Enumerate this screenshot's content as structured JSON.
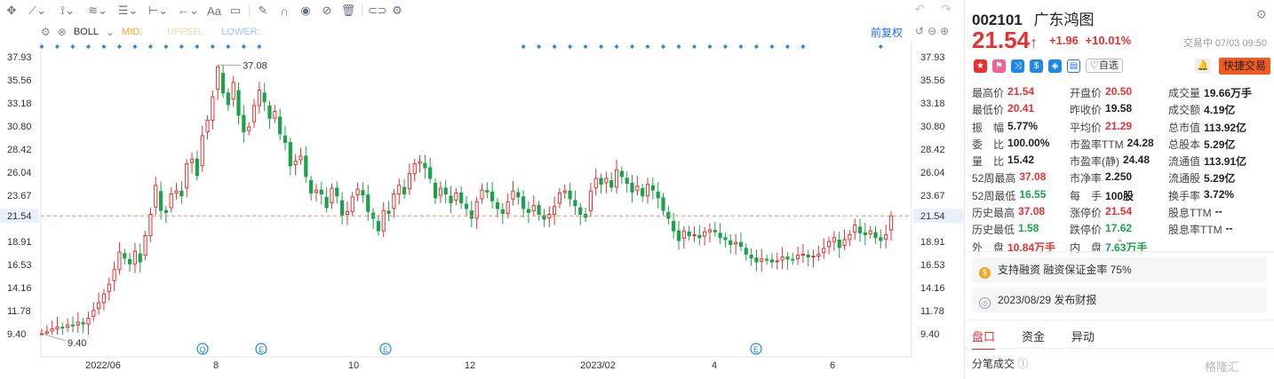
{
  "toolbar": {
    "icons": [
      "crosshair-icon",
      "line-tool-icon",
      "channel-tool-icon",
      "pattern-tool-icon",
      "fib-tool-icon",
      "measure-tool-icon",
      "arrow-tool-icon",
      "text-tool-icon",
      "comment-icon",
      "pencil-icon",
      "magnet-icon",
      "hide-drawings-icon",
      "remove-drawings-icon",
      "trash-icon",
      "link-icon",
      "settings-icon"
    ],
    "text_tool": "Aa"
  },
  "indicator": {
    "name": "BOLL",
    "mid": "MID:",
    "upper": "UPPER:",
    "lower": "LOWER:"
  },
  "adjust_label": "前复权",
  "chart_data": {
    "type": "candlestick",
    "y_ticks": [
      "37.93",
      "35.56",
      "33.18",
      "30.80",
      "28.42",
      "26.04",
      "23.67",
      "21.54",
      "18.91",
      "16.53",
      "14.16",
      "11.78",
      "9.40"
    ],
    "right_y_ticks": [
      "37.93",
      "35.56",
      "33.18",
      "30.80",
      "28.42",
      "26.04",
      "23.67",
      "21.54",
      "18.91",
      "16.53",
      "14.16",
      "11.78",
      "9.40"
    ],
    "x_ticks": [
      "2022/06",
      "8",
      "10",
      "12",
      "2023/02",
      "4",
      "6"
    ],
    "ylim": [
      9.4,
      37.93
    ],
    "high_label": "37.08",
    "low_label": "9.40",
    "current_price": 21.54,
    "event_markers": [
      "Q",
      "E",
      "E",
      "E"
    ],
    "closes": [
      9.4,
      9.6,
      9.9,
      10.1,
      10.0,
      10.3,
      10.2,
      10.6,
      10.4,
      11.0,
      11.8,
      12.6,
      13.5,
      14.5,
      16.0,
      17.8,
      17.2,
      16.6,
      17.9,
      16.8,
      19.5,
      21.7,
      24.7,
      22.1,
      21.9,
      23.8,
      24.1,
      23.6,
      26.9,
      27.4,
      25.7,
      29.8,
      31.4,
      33.8,
      36.9,
      34.2,
      33.0,
      35.3,
      31.9,
      30.2,
      30.7,
      32.9,
      34.5,
      33.3,
      31.6,
      32.3,
      30.0,
      29.1,
      26.7,
      27.2,
      27.7,
      25.6,
      23.9,
      24.2,
      23.8,
      22.4,
      24.4,
      23.6,
      21.6,
      22.0,
      23.5,
      24.3,
      23.7,
      22.0,
      21.3,
      20.0,
      22.1,
      21.8,
      23.8,
      24.7,
      23.8,
      25.9,
      26.9,
      27.1,
      26.5,
      25.4,
      23.4,
      24.4,
      23.8,
      22.9,
      23.9,
      22.9,
      22.3,
      21.3,
      23.0,
      24.2,
      24.0,
      23.1,
      22.3,
      21.8,
      23.0,
      24.1,
      23.5,
      22.3,
      21.9,
      22.6,
      21.7,
      21.2,
      21.7,
      22.5,
      23.9,
      24.1,
      23.3,
      22.6,
      21.7,
      21.4,
      24.1,
      25.4,
      24.8,
      25.4,
      24.5,
      26.3,
      25.6,
      24.9,
      24.0,
      24.6,
      23.6,
      24.8,
      24.2,
      23.4,
      22.1,
      21.3,
      20.0,
      19.0,
      20.0,
      19.5,
      19.6,
      19.3,
      19.9,
      20.1,
      19.9,
      19.3,
      19.1,
      18.6,
      18.8,
      18.4,
      17.6,
      17.2,
      16.8,
      17.1,
      17.0,
      16.8,
      16.9,
      17.3,
      17.1,
      17.0,
      17.5,
      17.6,
      17.3,
      17.4,
      17.6,
      18.2,
      18.9,
      19.3,
      18.3,
      19.1,
      19.6,
      20.6,
      19.8,
      19.6,
      20.0,
      19.3,
      19.0,
      19.6,
      21.54
    ]
  },
  "stock": {
    "code": "002101",
    "name": "广东鸿图",
    "price": "21.54",
    "arrow": "↑",
    "change": "+1.96",
    "change_pct": "+10.01%",
    "status": "交易中 07/03 09:50",
    "watch_label": "自选",
    "quick_trade_label": "快捷交易"
  },
  "stats": [
    [
      {
        "l": "最高价",
        "v": "21.54",
        "c": "red"
      },
      {
        "l": "开盘价",
        "v": "20.50",
        "c": "red"
      },
      {
        "l": "成交量",
        "v": "19.66万手",
        "c": ""
      }
    ],
    [
      {
        "l": "最低价",
        "v": "20.41",
        "c": "red"
      },
      {
        "l": "昨收价",
        "v": "19.58",
        "c": ""
      },
      {
        "l": "成交额",
        "v": "4.19亿",
        "c": ""
      }
    ],
    [
      {
        "l": "振　幅",
        "v": "5.77%",
        "c": ""
      },
      {
        "l": "平均价",
        "v": "21.29",
        "c": "red"
      },
      {
        "l": "总市值",
        "v": "113.92亿",
        "c": ""
      }
    ],
    [
      {
        "l": "委　比",
        "v": "100.00%",
        "c": ""
      },
      {
        "l": "市盈率TTM",
        "v": "24.28",
        "c": ""
      },
      {
        "l": "总股本",
        "v": "5.29亿",
        "c": ""
      }
    ],
    [
      {
        "l": "量　比",
        "v": "15.42",
        "c": ""
      },
      {
        "l": "市盈率(静)",
        "v": "24.48",
        "c": ""
      },
      {
        "l": "流通值",
        "v": "113.91亿",
        "c": ""
      }
    ],
    [
      {
        "l": "52周最高",
        "v": "37.08",
        "c": "red"
      },
      {
        "l": "市净率",
        "v": "2.250",
        "c": ""
      },
      {
        "l": "流通股",
        "v": "5.29亿",
        "c": ""
      }
    ],
    [
      {
        "l": "52周最低",
        "v": "16.55",
        "c": "green"
      },
      {
        "l": "每　手",
        "v": "100股",
        "c": ""
      },
      {
        "l": "换手率",
        "v": "3.72%",
        "c": ""
      }
    ],
    [
      {
        "l": "历史最高",
        "v": "37.08",
        "c": "red"
      },
      {
        "l": "涨停价",
        "v": "21.54",
        "c": "red"
      },
      {
        "l": "股息TTM",
        "v": "--",
        "c": ""
      }
    ],
    [
      {
        "l": "历史最低",
        "v": "1.58",
        "c": "green"
      },
      {
        "l": "跌停价",
        "v": "17.62",
        "c": "green"
      },
      {
        "l": "股息率TTM",
        "v": "--",
        "c": ""
      }
    ],
    [
      {
        "l": "外　盘",
        "v": "10.84万手",
        "c": "red"
      },
      {
        "l": "内　盘",
        "v": "7.63万手",
        "c": "green"
      },
      {
        "l": "",
        "v": "",
        "c": ""
      }
    ]
  ],
  "info": {
    "margin": "支持融资 融资保证金率 75%",
    "report": "2023/08/29  发布财报"
  },
  "tabs": [
    "盘口",
    "资金",
    "异动"
  ],
  "ticks_title": "分笔成交",
  "watermark": "格隆汇",
  "colors": {
    "up": "#e93030",
    "down": "#1aa34a",
    "marker": "#1e88e5",
    "price_line": "#f28b6c"
  }
}
